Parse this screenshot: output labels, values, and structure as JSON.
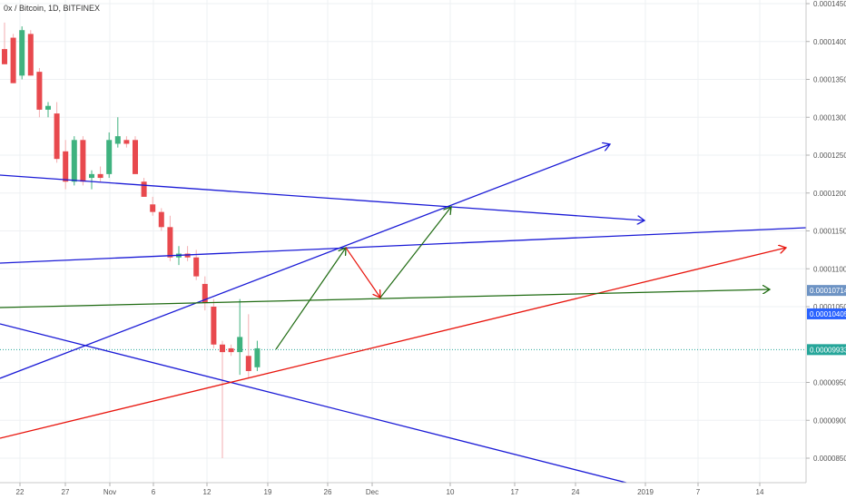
{
  "header": {
    "title": "0x / Bitcoin, 1D, BITFINEX"
  },
  "chart_data": {
    "type": "candlestick",
    "ylim": [
      8.4e-05,
      0.000145
    ],
    "y_ticks": [
      "0.00014500",
      "0.00014000",
      "0.00013500",
      "0.00013000",
      "0.00012500",
      "0.00012000",
      "0.00011500",
      "0.00011000",
      "0.00010500",
      "0.00009500",
      "0.00009000",
      "0.00008500"
    ],
    "x_ticks": [
      "22",
      "27",
      "Nov",
      "6",
      "12",
      "19",
      "26",
      "Dec",
      "10",
      "17",
      "24",
      "2019",
      "7",
      "14"
    ],
    "price_badges": [
      {
        "label": "0.00010714",
        "color": "#6d93c4"
      },
      {
        "label": "0.00010405",
        "color": "#2962ff"
      },
      {
        "label": "0.00009933",
        "color": "#26a69a"
      }
    ],
    "candles": [
      {
        "open": 0.000139,
        "high": 0.0001425,
        "low": 0.000137,
        "close": 0.000137
      },
      {
        "open": 0.0001405,
        "high": 0.000141,
        "low": 0.0001345,
        "close": 0.0001345
      },
      {
        "open": 0.0001355,
        "high": 0.000142,
        "low": 0.000135,
        "close": 0.0001415
      },
      {
        "open": 0.000141,
        "high": 0.0001415,
        "low": 0.0001355,
        "close": 0.0001355
      },
      {
        "open": 0.000136,
        "high": 0.0001365,
        "low": 0.00013,
        "close": 0.000131
      },
      {
        "open": 0.000131,
        "high": 0.000132,
        "low": 0.00013,
        "close": 0.0001315
      },
      {
        "open": 0.0001305,
        "high": 0.000132,
        "low": 0.000124,
        "close": 0.0001245
      },
      {
        "open": 0.0001255,
        "high": 0.000127,
        "low": 0.0001205,
        "close": 0.0001215
      },
      {
        "open": 0.0001215,
        "high": 0.0001275,
        "low": 0.000121,
        "close": 0.000127
      },
      {
        "open": 0.000127,
        "high": 0.0001275,
        "low": 0.000121,
        "close": 0.0001215
      },
      {
        "open": 0.000122,
        "high": 0.000123,
        "low": 0.0001205,
        "close": 0.0001225
      },
      {
        "open": 0.0001225,
        "high": 0.0001235,
        "low": 0.0001215,
        "close": 0.000122
      },
      {
        "open": 0.0001225,
        "high": 0.000128,
        "low": 0.000122,
        "close": 0.000127
      },
      {
        "open": 0.0001265,
        "high": 0.00013,
        "low": 0.000126,
        "close": 0.0001275
      },
      {
        "open": 0.000127,
        "high": 0.0001275,
        "low": 0.000126,
        "close": 0.0001265
      },
      {
        "open": 0.000127,
        "high": 0.0001275,
        "low": 0.0001225,
        "close": 0.0001225
      },
      {
        "open": 0.0001215,
        "high": 0.000122,
        "low": 0.0001195,
        "close": 0.0001195
      },
      {
        "open": 0.0001185,
        "high": 0.0001195,
        "low": 0.000117,
        "close": 0.0001175
      },
      {
        "open": 0.0001175,
        "high": 0.000118,
        "low": 0.000115,
        "close": 0.0001155
      },
      {
        "open": 0.0001155,
        "high": 0.000117,
        "low": 0.000111,
        "close": 0.0001115
      },
      {
        "open": 0.0001115,
        "high": 0.000113,
        "low": 0.0001105,
        "close": 0.000112
      },
      {
        "open": 0.000112,
        "high": 0.000113,
        "low": 0.000111,
        "close": 0.0001115
      },
      {
        "open": 0.0001115,
        "high": 0.0001125,
        "low": 0.0001085,
        "close": 0.000109
      },
      {
        "open": 0.000108,
        "high": 0.000109,
        "low": 0.0001045,
        "close": 0.0001055
      },
      {
        "open": 0.000105,
        "high": 0.000106,
        "low": 9.95e-05,
        "close": 0.0001
      },
      {
        "open": 0.0001,
        "high": 0.0001005,
        "low": 8.5e-05,
        "close": 9.9e-05
      },
      {
        "open": 9.95e-05,
        "high": 0.0001,
        "low": 9.85e-05,
        "close": 9.9e-05
      },
      {
        "open": 9.9e-05,
        "high": 0.000106,
        "low": 9.6e-05,
        "close": 0.000101
      },
      {
        "open": 9.85e-05,
        "high": 0.000104,
        "low": 9.55e-05,
        "close": 9.65e-05
      },
      {
        "open": 9.7e-05,
        "high": 0.0001005,
        "low": 9.65e-05,
        "close": 9.95e-05
      }
    ]
  }
}
